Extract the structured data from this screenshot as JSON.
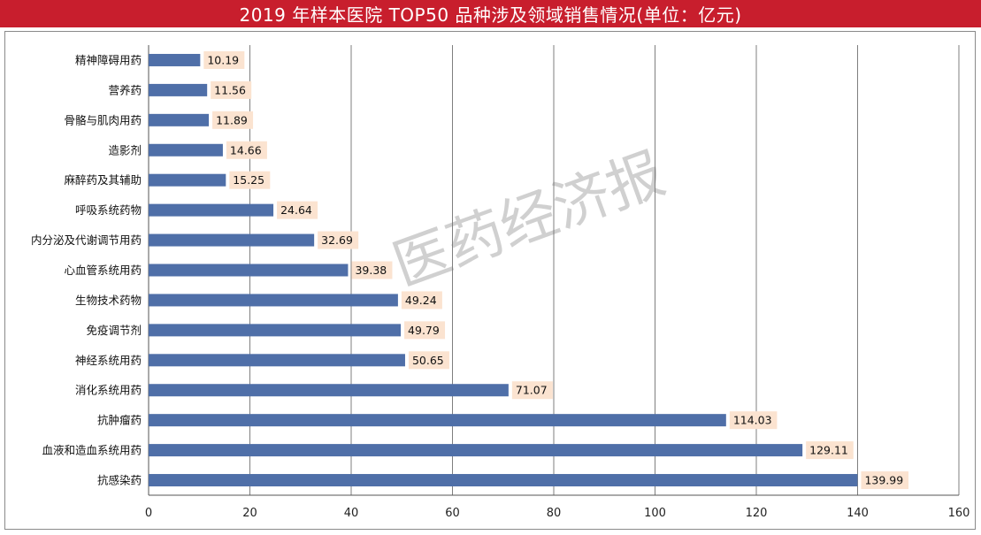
{
  "title": "2019 年样本医院 TOP50 品种涉及领域销售情况(单位：亿元)",
  "watermark": "医药经济报",
  "colors": {
    "title_bg": "#c81e2d",
    "bar": "#4f6fa8",
    "label_bg": "#fbe3d0",
    "grid": "#7f7f7f"
  },
  "chart_data": {
    "type": "bar",
    "orientation": "horizontal",
    "categories": [
      "精神障碍用药",
      "营养药",
      "骨骼与肌肉用药",
      "造影剂",
      "麻醉药及其辅助",
      "呼吸系统药物",
      "内分泌及代谢调节用药",
      "心血管系统用药",
      "生物技术药物",
      "免疫调节剂",
      "神经系统用药",
      "消化系统用药",
      "抗肿瘤药",
      "血液和造血系统用药",
      "抗感染药"
    ],
    "values": [
      10.19,
      11.56,
      11.89,
      14.66,
      15.25,
      24.64,
      32.69,
      39.38,
      49.24,
      49.79,
      50.65,
      71.07,
      114.03,
      129.11,
      139.99
    ],
    "value_labels": [
      "10.19",
      "11.56",
      "11.89",
      "14.66",
      "15.25",
      "24.64",
      "32.69",
      "39.38",
      "49.24",
      "49.79",
      "50.65",
      "71.07",
      "114.03",
      "129.11",
      "139.99"
    ],
    "xlim": [
      0,
      160
    ],
    "xticks": [
      "0",
      "20",
      "40",
      "60",
      "80",
      "100",
      "120",
      "140",
      "160"
    ],
    "xtick_values": [
      0,
      20,
      40,
      60,
      80,
      100,
      120,
      140,
      160
    ],
    "grid": true,
    "legend": false
  }
}
